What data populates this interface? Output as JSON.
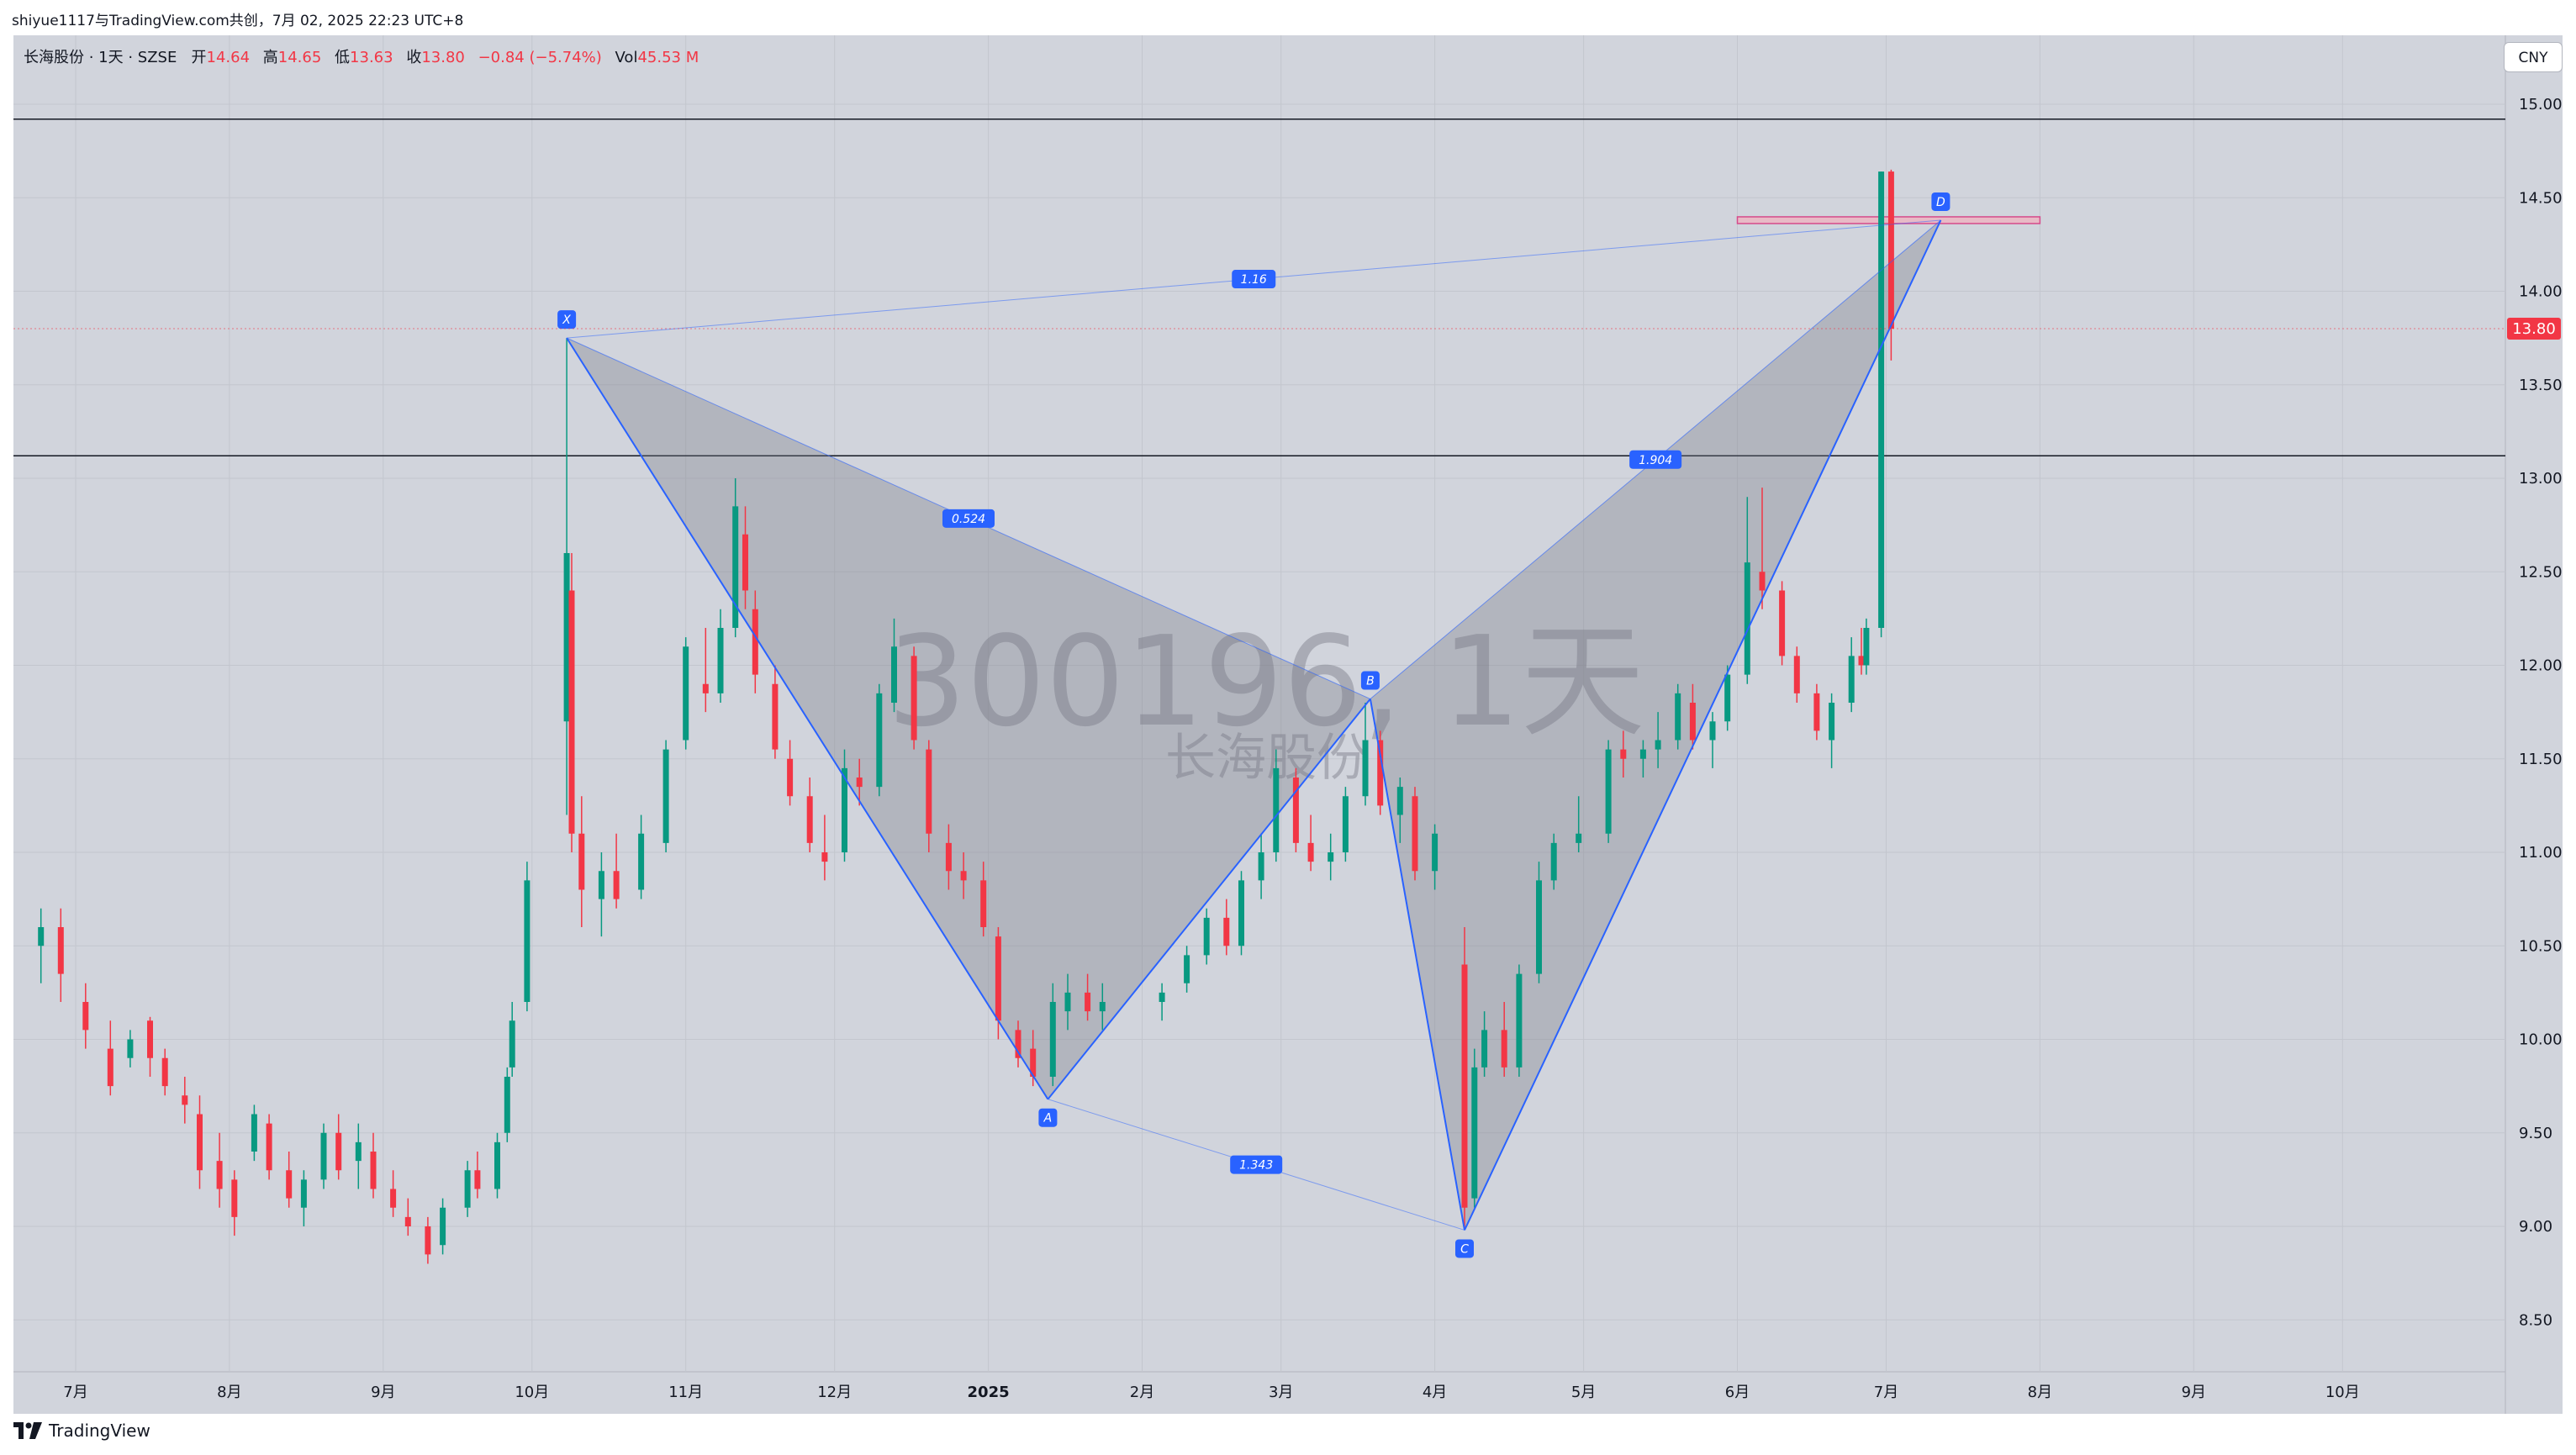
{
  "header": {
    "caption": "shiyue1117与TradingView.com共创，7月 02, 2025 22:23 UTC+8"
  },
  "legend": {
    "title": "长海股份 · 1天 · SZSE",
    "open_label": "开",
    "open": "14.64",
    "high_label": "高",
    "high": "14.65",
    "low_label": "低",
    "low": "13.63",
    "close_label": "收",
    "close": "13.80",
    "change": "−0.84 (−5.74%)",
    "vol_label": "Vol",
    "vol": "45.53 M"
  },
  "currency": "CNY",
  "watermark": {
    "symbol": "300196, 1天",
    "name": "长海股份"
  },
  "price_tag": "13.80",
  "footer": {
    "brand": "TradingView",
    "logo_icon": "tradingview-logo-icon"
  },
  "colors": {
    "up": "#089981",
    "down": "#f23645",
    "pattern_line": "#2962ff",
    "pattern_fill": "#787b86",
    "background": "#d1d4dc"
  },
  "chart_data": {
    "type": "candlestick",
    "symbol": "300196",
    "interval": "1天",
    "ylim": [
      8.3,
      15.2
    ],
    "y_ticks": [
      "8.50",
      "9.00",
      "9.50",
      "10.00",
      "10.50",
      "11.00",
      "11.50",
      "12.00",
      "12.50",
      "13.00",
      "13.50",
      "14.00",
      "14.50",
      "15.00"
    ],
    "x_tick_labels": [
      "7月",
      "8月",
      "9月",
      "10月",
      "11月",
      "12月",
      "2025",
      "2月",
      "3月",
      "4月",
      "5月",
      "6月",
      "7月",
      "8月",
      "9月",
      "10月"
    ],
    "x_tick_dates": [
      "2024-07-01",
      "2024-08-01",
      "2024-09-01",
      "2024-10-01",
      "2024-11-01",
      "2024-12-01",
      "2025-01-01",
      "2025-02-01",
      "2025-03-01",
      "2025-04-01",
      "2025-05-01",
      "2025-06-01",
      "2025-07-01",
      "2025-08-01",
      "2025-09-01",
      "2025-10-01"
    ],
    "horizontal_lines": [
      14.92,
      13.12
    ],
    "xabcd_pattern": {
      "points": [
        {
          "label": "X",
          "date": "2024-10-08",
          "price": 13.75
        },
        {
          "label": "A",
          "date": "2025-01-13",
          "price": 9.68
        },
        {
          "label": "B",
          "date": "2025-03-19",
          "price": 11.82
        },
        {
          "label": "C",
          "date": "2025-04-07",
          "price": 8.98
        },
        {
          "label": "D",
          "date": "2025-07-12",
          "price": 14.38
        }
      ],
      "ratios": [
        {
          "label": "0.524",
          "between": "XA-AB"
        },
        {
          "label": "1.343",
          "between": "AB-BC"
        },
        {
          "label": "1.904",
          "between": "BC-CD"
        },
        {
          "label": "1.16",
          "between": "XA-XD"
        }
      ],
      "target_zone": {
        "price": 14.38,
        "from": "2025-06-01",
        "to": "2025-08-01"
      }
    },
    "candles": [
      {
        "d": "2024-06-24",
        "o": 10.5,
        "h": 10.7,
        "l": 10.3,
        "c": 10.6
      },
      {
        "d": "2024-06-28",
        "o": 10.6,
        "h": 10.7,
        "l": 10.2,
        "c": 10.35
      },
      {
        "d": "2024-07-03",
        "o": 10.2,
        "h": 10.3,
        "l": 9.95,
        "c": 10.05
      },
      {
        "d": "2024-07-08",
        "o": 9.95,
        "h": 10.1,
        "l": 9.7,
        "c": 9.75
      },
      {
        "d": "2024-07-12",
        "o": 9.9,
        "h": 10.05,
        "l": 9.85,
        "c": 10.0
      },
      {
        "d": "2024-07-16",
        "o": 10.1,
        "h": 10.12,
        "l": 9.8,
        "c": 9.9
      },
      {
        "d": "2024-07-19",
        "o": 9.9,
        "h": 9.95,
        "l": 9.7,
        "c": 9.75
      },
      {
        "d": "2024-07-23",
        "o": 9.7,
        "h": 9.8,
        "l": 9.55,
        "c": 9.65
      },
      {
        "d": "2024-07-26",
        "o": 9.6,
        "h": 9.7,
        "l": 9.2,
        "c": 9.3
      },
      {
        "d": "2024-07-30",
        "o": 9.35,
        "h": 9.5,
        "l": 9.1,
        "c": 9.2
      },
      {
        "d": "2024-08-02",
        "o": 9.25,
        "h": 9.3,
        "l": 8.95,
        "c": 9.05
      },
      {
        "d": "2024-08-06",
        "o": 9.4,
        "h": 9.65,
        "l": 9.35,
        "c": 9.6
      },
      {
        "d": "2024-08-09",
        "o": 9.55,
        "h": 9.6,
        "l": 9.25,
        "c": 9.3
      },
      {
        "d": "2024-08-13",
        "o": 9.3,
        "h": 9.4,
        "l": 9.1,
        "c": 9.15
      },
      {
        "d": "2024-08-16",
        "o": 9.1,
        "h": 9.3,
        "l": 9.0,
        "c": 9.25
      },
      {
        "d": "2024-08-20",
        "o": 9.25,
        "h": 9.55,
        "l": 9.2,
        "c": 9.5
      },
      {
        "d": "2024-08-23",
        "o": 9.5,
        "h": 9.6,
        "l": 9.25,
        "c": 9.3
      },
      {
        "d": "2024-08-27",
        "o": 9.35,
        "h": 9.55,
        "l": 9.2,
        "c": 9.45
      },
      {
        "d": "2024-08-30",
        "o": 9.4,
        "h": 9.5,
        "l": 9.15,
        "c": 9.2
      },
      {
        "d": "2024-09-03",
        "o": 9.2,
        "h": 9.3,
        "l": 9.05,
        "c": 9.1
      },
      {
        "d": "2024-09-06",
        "o": 9.05,
        "h": 9.15,
        "l": 8.95,
        "c": 9.0
      },
      {
        "d": "2024-09-10",
        "o": 9.0,
        "h": 9.05,
        "l": 8.8,
        "c": 8.85
      },
      {
        "d": "2024-09-13",
        "o": 8.9,
        "h": 9.15,
        "l": 8.85,
        "c": 9.1
      },
      {
        "d": "2024-09-18",
        "o": 9.1,
        "h": 9.35,
        "l": 9.05,
        "c": 9.3
      },
      {
        "d": "2024-09-20",
        "o": 9.3,
        "h": 9.4,
        "l": 9.15,
        "c": 9.2
      },
      {
        "d": "2024-09-24",
        "o": 9.2,
        "h": 9.5,
        "l": 9.15,
        "c": 9.45
      },
      {
        "d": "2024-09-26",
        "o": 9.5,
        "h": 9.85,
        "l": 9.45,
        "c": 9.8
      },
      {
        "d": "2024-09-27",
        "o": 9.85,
        "h": 10.2,
        "l": 9.8,
        "c": 10.1
      },
      {
        "d": "2024-09-30",
        "o": 10.2,
        "h": 10.95,
        "l": 10.15,
        "c": 10.85
      },
      {
        "d": "2024-10-08",
        "o": 11.7,
        "h": 13.75,
        "l": 11.2,
        "c": 12.6
      },
      {
        "d": "2024-10-09",
        "o": 12.4,
        "h": 12.6,
        "l": 11.0,
        "c": 11.1
      },
      {
        "d": "2024-10-11",
        "o": 11.1,
        "h": 11.3,
        "l": 10.6,
        "c": 10.8
      },
      {
        "d": "2024-10-15",
        "o": 10.75,
        "h": 11.0,
        "l": 10.55,
        "c": 10.9
      },
      {
        "d": "2024-10-18",
        "o": 10.9,
        "h": 11.1,
        "l": 10.7,
        "c": 10.75
      },
      {
        "d": "2024-10-23",
        "o": 10.8,
        "h": 11.2,
        "l": 10.75,
        "c": 11.1
      },
      {
        "d": "2024-10-28",
        "o": 11.05,
        "h": 11.6,
        "l": 11.0,
        "c": 11.55
      },
      {
        "d": "2024-11-01",
        "o": 11.6,
        "h": 12.15,
        "l": 11.55,
        "c": 12.1
      },
      {
        "d": "2024-11-05",
        "o": 11.9,
        "h": 12.2,
        "l": 11.75,
        "c": 11.85
      },
      {
        "d": "2024-11-08",
        "o": 11.85,
        "h": 12.3,
        "l": 11.8,
        "c": 12.2
      },
      {
        "d": "2024-11-11",
        "o": 12.2,
        "h": 13.0,
        "l": 12.15,
        "c": 12.85
      },
      {
        "d": "2024-11-13",
        "o": 12.7,
        "h": 12.85,
        "l": 12.3,
        "c": 12.4
      },
      {
        "d": "2024-11-15",
        "o": 12.3,
        "h": 12.4,
        "l": 11.85,
        "c": 11.95
      },
      {
        "d": "2024-11-19",
        "o": 11.9,
        "h": 12.0,
        "l": 11.5,
        "c": 11.55
      },
      {
        "d": "2024-11-22",
        "o": 11.5,
        "h": 11.6,
        "l": 11.25,
        "c": 11.3
      },
      {
        "d": "2024-11-26",
        "o": 11.3,
        "h": 11.4,
        "l": 11.0,
        "c": 11.05
      },
      {
        "d": "2024-11-29",
        "o": 11.0,
        "h": 11.2,
        "l": 10.85,
        "c": 10.95
      },
      {
        "d": "2024-12-03",
        "o": 11.0,
        "h": 11.55,
        "l": 10.95,
        "c": 11.45
      },
      {
        "d": "2024-12-06",
        "o": 11.4,
        "h": 11.5,
        "l": 11.25,
        "c": 11.35
      },
      {
        "d": "2024-12-10",
        "o": 11.35,
        "h": 11.9,
        "l": 11.3,
        "c": 11.85
      },
      {
        "d": "2024-12-13",
        "o": 11.8,
        "h": 12.25,
        "l": 11.75,
        "c": 12.1
      },
      {
        "d": "2024-12-17",
        "o": 12.05,
        "h": 12.1,
        "l": 11.55,
        "c": 11.6
      },
      {
        "d": "2024-12-20",
        "o": 11.55,
        "h": 11.6,
        "l": 11.0,
        "c": 11.1
      },
      {
        "d": "2024-12-24",
        "o": 11.05,
        "h": 11.15,
        "l": 10.8,
        "c": 10.9
      },
      {
        "d": "2024-12-27",
        "o": 10.9,
        "h": 11.0,
        "l": 10.75,
        "c": 10.85
      },
      {
        "d": "2024-12-31",
        "o": 10.85,
        "h": 10.95,
        "l": 10.55,
        "c": 10.6
      },
      {
        "d": "2025-01-03",
        "o": 10.55,
        "h": 10.6,
        "l": 10.0,
        "c": 10.1
      },
      {
        "d": "2025-01-07",
        "o": 10.05,
        "h": 10.1,
        "l": 9.85,
        "c": 9.9
      },
      {
        "d": "2025-01-10",
        "o": 9.95,
        "h": 10.05,
        "l": 9.75,
        "c": 9.8
      },
      {
        "d": "2025-01-14",
        "o": 9.8,
        "h": 10.3,
        "l": 9.75,
        "c": 10.2
      },
      {
        "d": "2025-01-17",
        "o": 10.15,
        "h": 10.35,
        "l": 10.05,
        "c": 10.25
      },
      {
        "d": "2025-01-21",
        "o": 10.25,
        "h": 10.35,
        "l": 10.1,
        "c": 10.15
      },
      {
        "d": "2025-01-24",
        "o": 10.15,
        "h": 10.3,
        "l": 10.05,
        "c": 10.2
      },
      {
        "d": "2025-02-05",
        "o": 10.2,
        "h": 10.3,
        "l": 10.1,
        "c": 10.25
      },
      {
        "d": "2025-02-10",
        "o": 10.3,
        "h": 10.5,
        "l": 10.25,
        "c": 10.45
      },
      {
        "d": "2025-02-14",
        "o": 10.45,
        "h": 10.7,
        "l": 10.4,
        "c": 10.65
      },
      {
        "d": "2025-02-18",
        "o": 10.65,
        "h": 10.75,
        "l": 10.45,
        "c": 10.5
      },
      {
        "d": "2025-02-21",
        "o": 10.5,
        "h": 10.9,
        "l": 10.45,
        "c": 10.85
      },
      {
        "d": "2025-02-25",
        "o": 10.85,
        "h": 11.1,
        "l": 10.75,
        "c": 11.0
      },
      {
        "d": "2025-02-28",
        "o": 11.0,
        "h": 11.55,
        "l": 10.95,
        "c": 11.45
      },
      {
        "d": "2025-03-04",
        "o": 11.4,
        "h": 11.45,
        "l": 11.0,
        "c": 11.05
      },
      {
        "d": "2025-03-07",
        "o": 11.05,
        "h": 11.2,
        "l": 10.9,
        "c": 10.95
      },
      {
        "d": "2025-03-11",
        "o": 10.95,
        "h": 11.1,
        "l": 10.85,
        "c": 11.0
      },
      {
        "d": "2025-03-14",
        "o": 11.0,
        "h": 11.35,
        "l": 10.95,
        "c": 11.3
      },
      {
        "d": "2025-03-18",
        "o": 11.3,
        "h": 11.8,
        "l": 11.25,
        "c": 11.6
      },
      {
        "d": "2025-03-21",
        "o": 11.6,
        "h": 11.65,
        "l": 11.2,
        "c": 11.25
      },
      {
        "d": "2025-03-25",
        "o": 11.2,
        "h": 11.4,
        "l": 11.05,
        "c": 11.35
      },
      {
        "d": "2025-03-28",
        "o": 11.3,
        "h": 11.35,
        "l": 10.85,
        "c": 10.9
      },
      {
        "d": "2025-04-01",
        "o": 10.9,
        "h": 11.15,
        "l": 10.8,
        "c": 11.1
      },
      {
        "d": "2025-04-07",
        "o": 10.4,
        "h": 10.6,
        "l": 8.98,
        "c": 9.1
      },
      {
        "d": "2025-04-09",
        "o": 9.15,
        "h": 9.95,
        "l": 9.1,
        "c": 9.85
      },
      {
        "d": "2025-04-11",
        "o": 9.85,
        "h": 10.15,
        "l": 9.8,
        "c": 10.05
      },
      {
        "d": "2025-04-15",
        "o": 10.05,
        "h": 10.2,
        "l": 9.8,
        "c": 9.85
      },
      {
        "d": "2025-04-18",
        "o": 9.85,
        "h": 10.4,
        "l": 9.8,
        "c": 10.35
      },
      {
        "d": "2025-04-22",
        "o": 10.35,
        "h": 10.95,
        "l": 10.3,
        "c": 10.85
      },
      {
        "d": "2025-04-25",
        "o": 10.85,
        "h": 11.1,
        "l": 10.8,
        "c": 11.05
      },
      {
        "d": "2025-04-30",
        "o": 11.05,
        "h": 11.3,
        "l": 11.0,
        "c": 11.1
      },
      {
        "d": "2025-05-06",
        "o": 11.1,
        "h": 11.6,
        "l": 11.05,
        "c": 11.55
      },
      {
        "d": "2025-05-09",
        "o": 11.55,
        "h": 11.65,
        "l": 11.4,
        "c": 11.5
      },
      {
        "d": "2025-05-13",
        "o": 11.5,
        "h": 11.6,
        "l": 11.4,
        "c": 11.55
      },
      {
        "d": "2025-05-16",
        "o": 11.55,
        "h": 11.75,
        "l": 11.45,
        "c": 11.6
      },
      {
        "d": "2025-05-20",
        "o": 11.6,
        "h": 11.9,
        "l": 11.55,
        "c": 11.85
      },
      {
        "d": "2025-05-23",
        "o": 11.8,
        "h": 11.9,
        "l": 11.55,
        "c": 11.6
      },
      {
        "d": "2025-05-27",
        "o": 11.6,
        "h": 11.75,
        "l": 11.45,
        "c": 11.7
      },
      {
        "d": "2025-05-30",
        "o": 11.7,
        "h": 12.0,
        "l": 11.65,
        "c": 11.95
      },
      {
        "d": "2025-06-03",
        "o": 11.95,
        "h": 12.9,
        "l": 11.9,
        "c": 12.55
      },
      {
        "d": "2025-06-06",
        "o": 12.5,
        "h": 12.95,
        "l": 12.3,
        "c": 12.4
      },
      {
        "d": "2025-06-10",
        "o": 12.4,
        "h": 12.45,
        "l": 12.0,
        "c": 12.05
      },
      {
        "d": "2025-06-13",
        "o": 12.05,
        "h": 12.1,
        "l": 11.8,
        "c": 11.85
      },
      {
        "d": "2025-06-17",
        "o": 11.85,
        "h": 11.9,
        "l": 11.6,
        "c": 11.65
      },
      {
        "d": "2025-06-20",
        "o": 11.6,
        "h": 11.85,
        "l": 11.45,
        "c": 11.8
      },
      {
        "d": "2025-06-24",
        "o": 11.8,
        "h": 12.15,
        "l": 11.75,
        "c": 12.05
      },
      {
        "d": "2025-06-26",
        "o": 12.05,
        "h": 12.2,
        "l": 11.95,
        "c": 12.0
      },
      {
        "d": "2025-06-27",
        "o": 12.0,
        "h": 12.25,
        "l": 11.95,
        "c": 12.2
      },
      {
        "d": "2025-06-30",
        "o": 12.2,
        "h": 14.64,
        "l": 12.15,
        "c": 14.64
      },
      {
        "d": "2025-07-02",
        "o": 14.64,
        "h": 14.65,
        "l": 13.63,
        "c": 13.8
      }
    ]
  }
}
